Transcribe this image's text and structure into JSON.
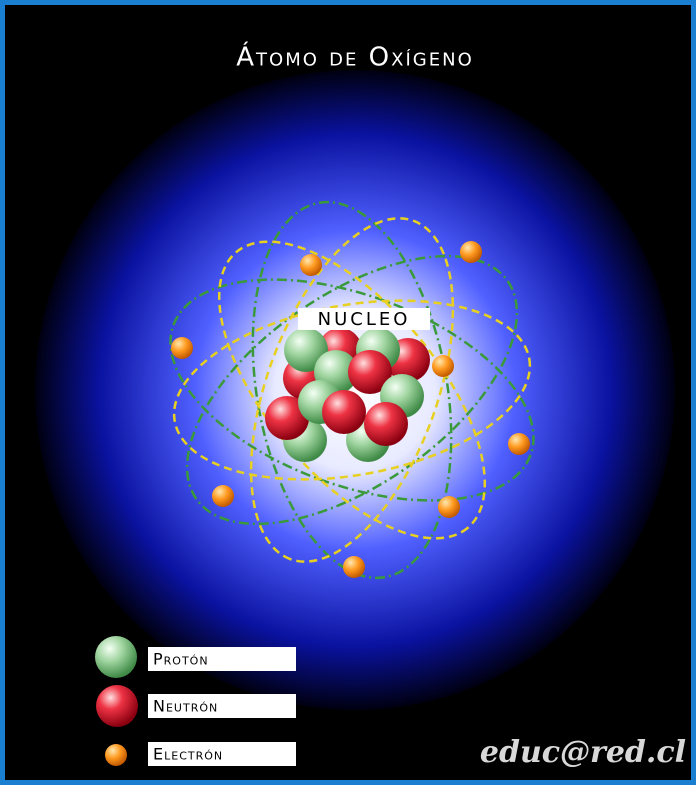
{
  "title": "Átomo de Oxígeno",
  "nucleus_label": "NUCLEO",
  "legend": [
    "Protón",
    "Neutrón",
    "Electrón"
  ],
  "credit": "educ@red.cl"
}
